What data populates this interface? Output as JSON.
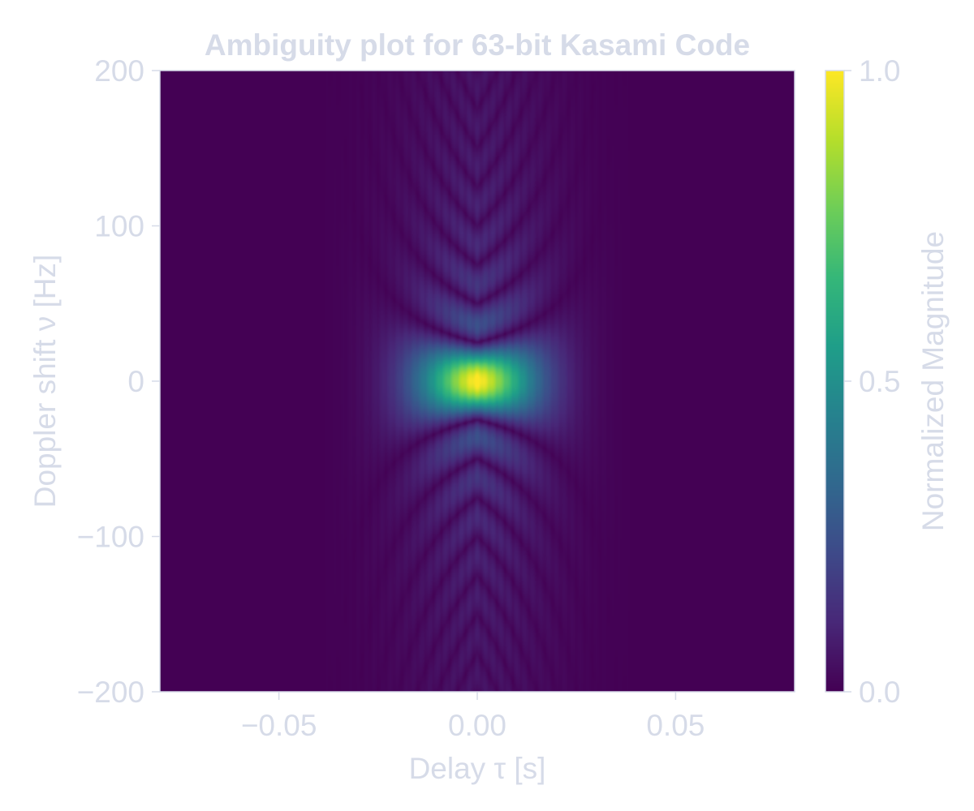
{
  "chart_data": {
    "type": "heatmap",
    "title": "Ambiguity plot for 63-bit Kasami Code",
    "xlabel": "Delay τ [s]",
    "ylabel": "Doppler shift ν [Hz]",
    "colorbar_label": "Normalized Magnitude",
    "xlim": [
      -0.08,
      0.08
    ],
    "ylim": [
      -200,
      200
    ],
    "x_ticks": [
      {
        "value": -0.05,
        "label": "−0.05"
      },
      {
        "value": 0.0,
        "label": "0.00"
      },
      {
        "value": 0.05,
        "label": "0.05"
      }
    ],
    "y_ticks": [
      {
        "value": 200,
        "label": "200"
      },
      {
        "value": 100,
        "label": "100"
      },
      {
        "value": 0,
        "label": "0"
      },
      {
        "value": -100,
        "label": "−100"
      },
      {
        "value": -200,
        "label": "−200"
      }
    ],
    "colorbar_range": [
      0.0,
      1.0
    ],
    "colorbar_ticks": [
      {
        "value": 1.0,
        "label": "1.0"
      },
      {
        "value": 0.5,
        "label": "0.5"
      },
      {
        "value": 0.0,
        "label": "0.0"
      }
    ],
    "colormap": "viridis",
    "peak": {
      "x": 0.0,
      "y": 0.0,
      "value": 1.0
    },
    "grid": false
  },
  "colors": {
    "text": "#d6dbe8",
    "frame": "#d6dbe8",
    "cmap_low": "#440154",
    "cmap_high": "#fde725"
  }
}
